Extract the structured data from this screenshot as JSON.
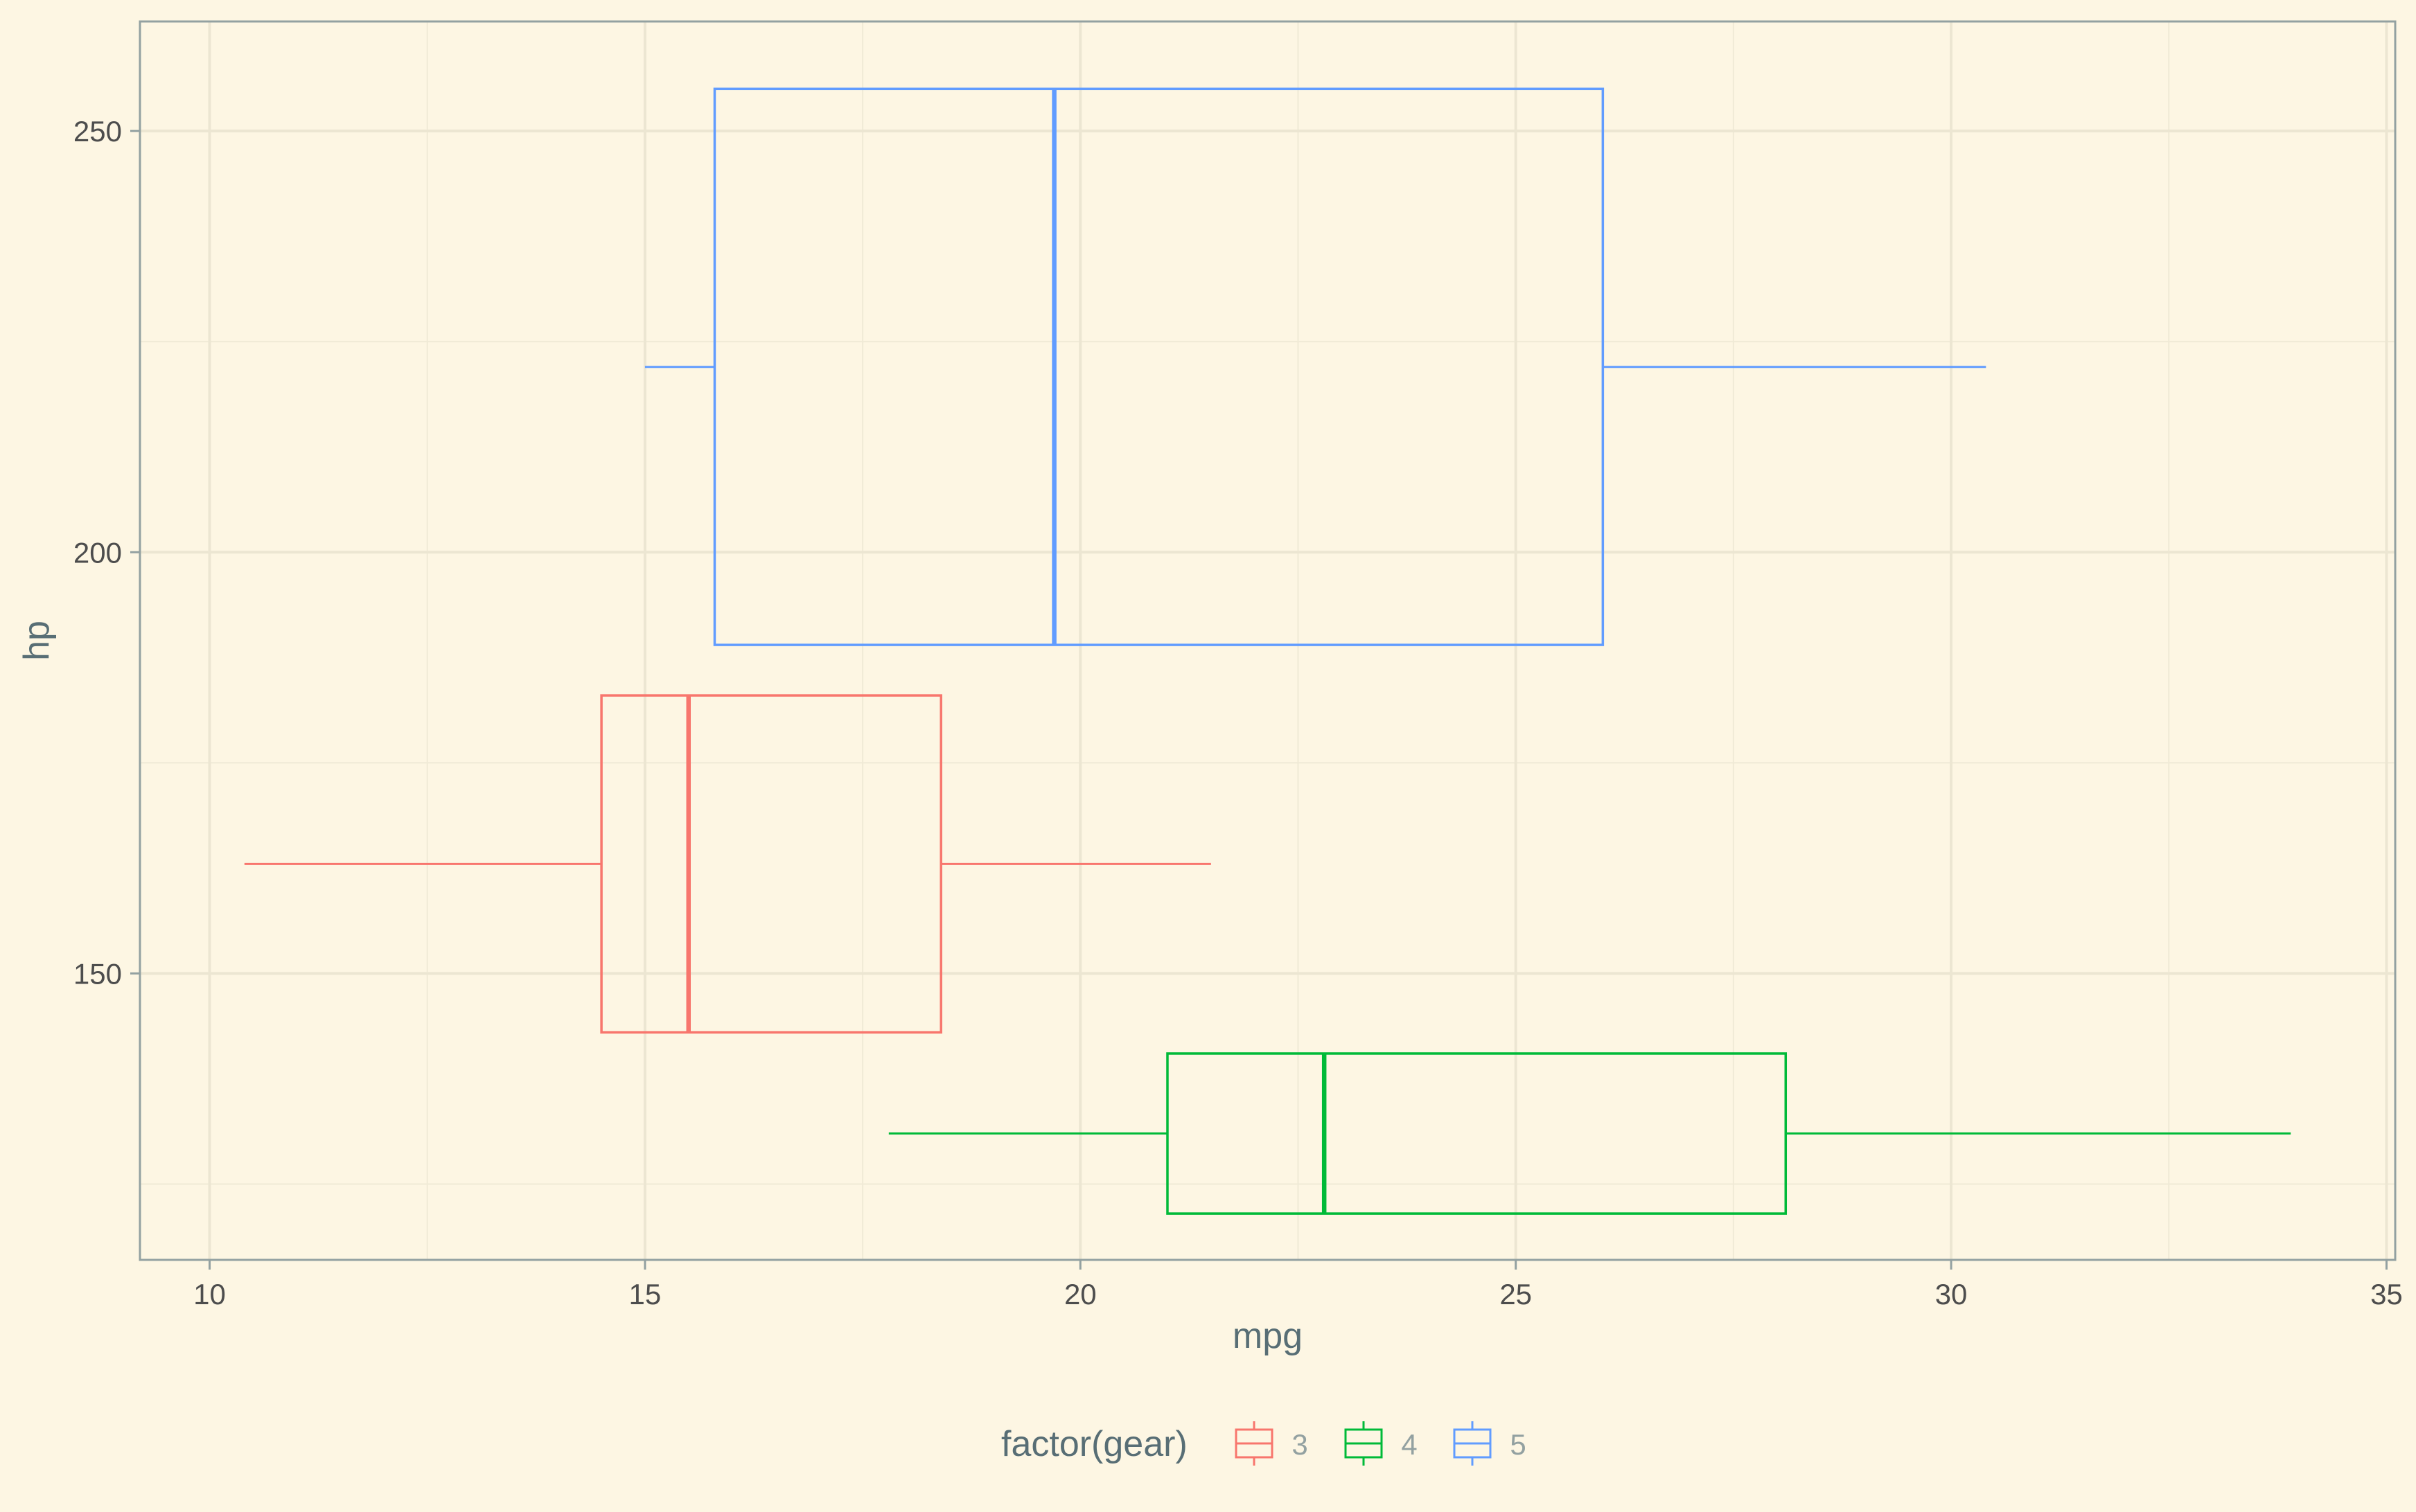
{
  "chart_data": {
    "type": "boxplot",
    "orientation": "horizontal",
    "xlabel": "mpg",
    "ylabel": "hp",
    "xlim": [
      9.2,
      35.1
    ],
    "ylim": [
      116,
      263
    ],
    "x_ticks": [
      10,
      15,
      20,
      25,
      30,
      35
    ],
    "x_tick_labels": [
      "10",
      "15",
      "20",
      "25",
      "30",
      "35"
    ],
    "y_ticks": [
      150,
      200,
      250
    ],
    "y_tick_labels": [
      "150",
      "200",
      "250"
    ],
    "grid": true,
    "legend": {
      "title": "factor(gear)",
      "position": "bottom",
      "entries": [
        "3",
        "4",
        "5"
      ]
    },
    "series": [
      {
        "name": "3",
        "color": "#f8766d",
        "whisker_low": 10.4,
        "q1": 14.5,
        "median": 15.5,
        "q3": 18.4,
        "whisker_high": 21.5,
        "y_center": 163,
        "y_low": 143,
        "y_high": 183
      },
      {
        "name": "4",
        "color": "#00ba38",
        "whisker_low": 17.8,
        "q1": 21.0,
        "median": 22.8,
        "q3": 28.1,
        "whisker_high": 33.9,
        "y_center": 131,
        "y_low": 121.5,
        "y_high": 140.5
      },
      {
        "name": "5",
        "color": "#619cff",
        "whisker_low": 15.0,
        "q1": 15.8,
        "median": 19.7,
        "q3": 26.0,
        "whisker_high": 30.4,
        "y_center": 222,
        "y_low": 189,
        "y_high": 255
      }
    ]
  }
}
